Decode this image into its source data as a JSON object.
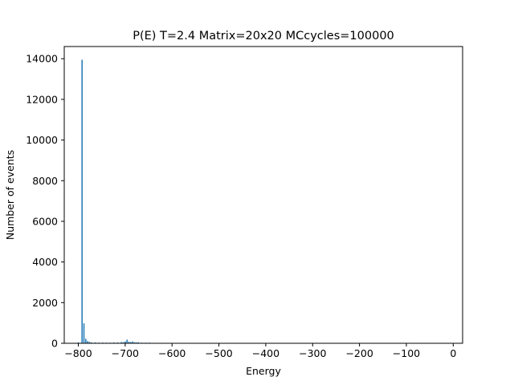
{
  "chart_data": {
    "type": "bar",
    "title": "P(E) T=2.4 Matrix=20x20 MCcycles=100000",
    "xlabel": "Energy",
    "ylabel": "Number of events",
    "xlim": [
      -830,
      20
    ],
    "ylim": [
      0,
      14600
    ],
    "xticks": [
      -800,
      -700,
      -600,
      -500,
      -400,
      -300,
      -200,
      -100,
      0
    ],
    "xtick_labels": [
      "−800",
      "−700",
      "−600",
      "−500",
      "−400",
      "−300",
      "−200",
      "−100",
      "0"
    ],
    "yticks": [
      0,
      2000,
      4000,
      6000,
      8000,
      10000,
      12000,
      14000
    ],
    "ytick_labels": [
      "0",
      "2000",
      "4000",
      "6000",
      "8000",
      "10000",
      "12000",
      "14000"
    ],
    "grid": false,
    "bar_color": "#1f77b4",
    "bars": [
      {
        "x": -800,
        "y": 40
      },
      {
        "x": -792,
        "y": 13950
      },
      {
        "x": -788,
        "y": 980
      },
      {
        "x": -784,
        "y": 220
      },
      {
        "x": -780,
        "y": 110
      },
      {
        "x": -776,
        "y": 70
      },
      {
        "x": -772,
        "y": 40
      },
      {
        "x": -764,
        "y": 40
      },
      {
        "x": -756,
        "y": 30
      },
      {
        "x": -748,
        "y": 35
      },
      {
        "x": -740,
        "y": 30
      },
      {
        "x": -732,
        "y": 30
      },
      {
        "x": -724,
        "y": 40
      },
      {
        "x": -716,
        "y": 40
      },
      {
        "x": -708,
        "y": 60
      },
      {
        "x": -704,
        "y": 50
      },
      {
        "x": -700,
        "y": 90
      },
      {
        "x": -696,
        "y": 180
      },
      {
        "x": -692,
        "y": 80
      },
      {
        "x": -688,
        "y": 60
      },
      {
        "x": -684,
        "y": 90
      },
      {
        "x": -680,
        "y": 50
      },
      {
        "x": -676,
        "y": 40
      },
      {
        "x": -672,
        "y": 50
      },
      {
        "x": -664,
        "y": 30
      },
      {
        "x": -656,
        "y": 30
      },
      {
        "x": -648,
        "y": 30
      },
      {
        "x": -640,
        "y": 20
      },
      {
        "x": -632,
        "y": 20
      },
      {
        "x": -624,
        "y": 15
      },
      {
        "x": -616,
        "y": 10
      },
      {
        "x": -608,
        "y": 10
      }
    ]
  }
}
